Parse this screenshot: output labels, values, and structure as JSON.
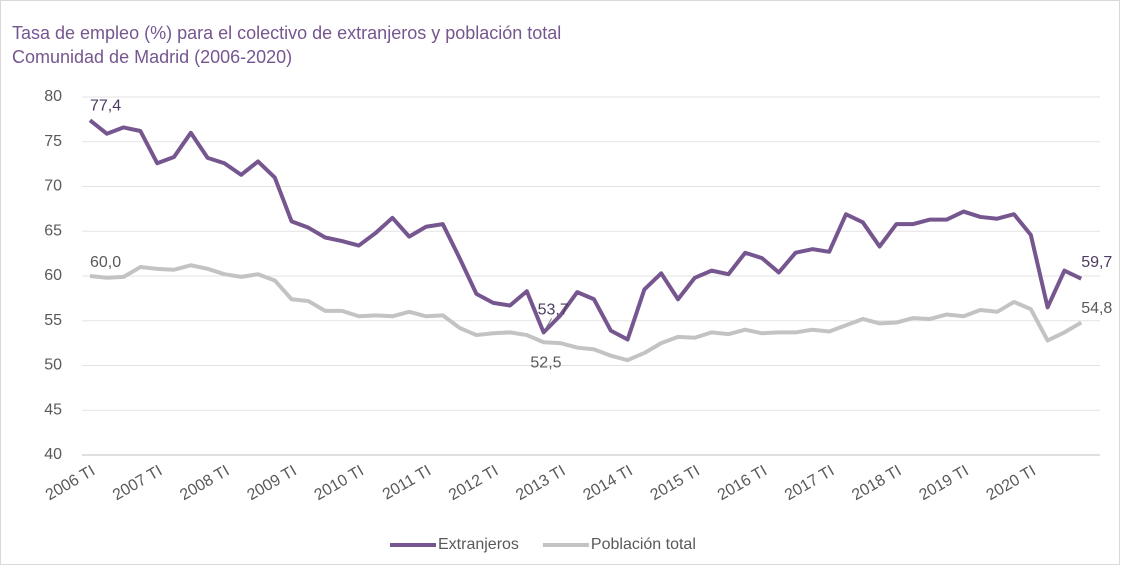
{
  "chart_data": {
    "type": "line",
    "title": "Tasa de empleo (%) para el colectivo de extranjeros  y población total",
    "subtitle": "Comunidad de Madrid (2006-2020)",
    "categories": [
      "2006 TI",
      null,
      null,
      null,
      "2007 TI",
      null,
      null,
      null,
      "2008 TI",
      null,
      null,
      null,
      "2009 TI",
      null,
      null,
      null,
      "2010 TI",
      null,
      null,
      null,
      "2011 TI",
      null,
      null,
      null,
      "2012 TI",
      null,
      null,
      null,
      "2013 TI",
      null,
      null,
      null,
      "2014 TI",
      null,
      null,
      null,
      "2015 TI",
      null,
      null,
      null,
      "2016 TI",
      null,
      null,
      null,
      "2017 TI",
      null,
      null,
      null,
      "2018 TI",
      null,
      null,
      null,
      "2019 TI",
      null,
      null,
      null,
      "2020 TI",
      null,
      null,
      null
    ],
    "series": [
      {
        "name": "Extranjeros",
        "color": "#76568f",
        "values": [
          77.4,
          75.9,
          76.6,
          76.2,
          72.6,
          73.3,
          76.0,
          73.2,
          72.6,
          71.3,
          72.8,
          71.0,
          66.1,
          65.4,
          64.3,
          63.9,
          63.4,
          64.8,
          66.5,
          64.4,
          65.5,
          65.8,
          62.0,
          58.0,
          57.0,
          56.7,
          58.3,
          53.7,
          55.6,
          58.2,
          57.4,
          53.9,
          52.9,
          58.5,
          60.3,
          57.4,
          59.8,
          60.6,
          60.2,
          62.6,
          62.0,
          60.4,
          62.6,
          63.0,
          62.7,
          66.9,
          66.0,
          63.3,
          65.8,
          65.8,
          66.3,
          66.3,
          67.2,
          66.6,
          66.4,
          66.9,
          64.6,
          56.5,
          60.6,
          59.7
        ],
        "value_labels": [
          "77,4",
          null,
          null,
          null,
          null,
          null,
          null,
          null,
          null,
          null,
          null,
          null,
          null,
          null,
          null,
          null,
          null,
          null,
          null,
          null,
          null,
          null,
          null,
          null,
          null,
          null,
          null,
          "53,7",
          null,
          null,
          null,
          null,
          null,
          null,
          null,
          null,
          null,
          null,
          null,
          null,
          null,
          null,
          null,
          null,
          null,
          null,
          null,
          null,
          null,
          null,
          null,
          null,
          null,
          null,
          null,
          null,
          null,
          null,
          null,
          "59,7"
        ]
      },
      {
        "name": "Población total",
        "color": "#c3c3c3",
        "values": [
          60.0,
          59.8,
          59.9,
          61.0,
          60.8,
          60.7,
          61.2,
          60.8,
          60.2,
          59.9,
          60.2,
          59.5,
          57.4,
          57.2,
          56.1,
          56.1,
          55.5,
          55.6,
          55.5,
          56.0,
          55.5,
          55.6,
          54.2,
          53.4,
          53.6,
          53.7,
          53.4,
          52.6,
          52.5,
          52.0,
          51.8,
          51.1,
          50.6,
          51.4,
          52.5,
          53.2,
          53.1,
          53.7,
          53.5,
          54.0,
          53.6,
          53.7,
          53.7,
          54.0,
          53.8,
          54.5,
          55.2,
          54.7,
          54.8,
          55.3,
          55.2,
          55.7,
          55.5,
          56.2,
          56.0,
          57.1,
          56.3,
          52.8,
          53.7,
          54.8
        ],
        "value_labels": [
          "60,0",
          null,
          null,
          null,
          null,
          null,
          null,
          null,
          null,
          null,
          null,
          null,
          null,
          null,
          null,
          null,
          null,
          null,
          null,
          null,
          null,
          null,
          null,
          null,
          null,
          null,
          null,
          null,
          "52,5",
          null,
          null,
          null,
          null,
          null,
          null,
          null,
          null,
          null,
          null,
          null,
          null,
          null,
          null,
          null,
          null,
          null,
          null,
          null,
          null,
          null,
          null,
          null,
          null,
          null,
          null,
          null,
          null,
          null,
          null,
          "54,8"
        ]
      }
    ],
    "ylim": [
      40,
      80
    ],
    "yticks": [
      40,
      45,
      50,
      55,
      60,
      65,
      70,
      75,
      80
    ],
    "grid": true,
    "legend": "bottom"
  }
}
